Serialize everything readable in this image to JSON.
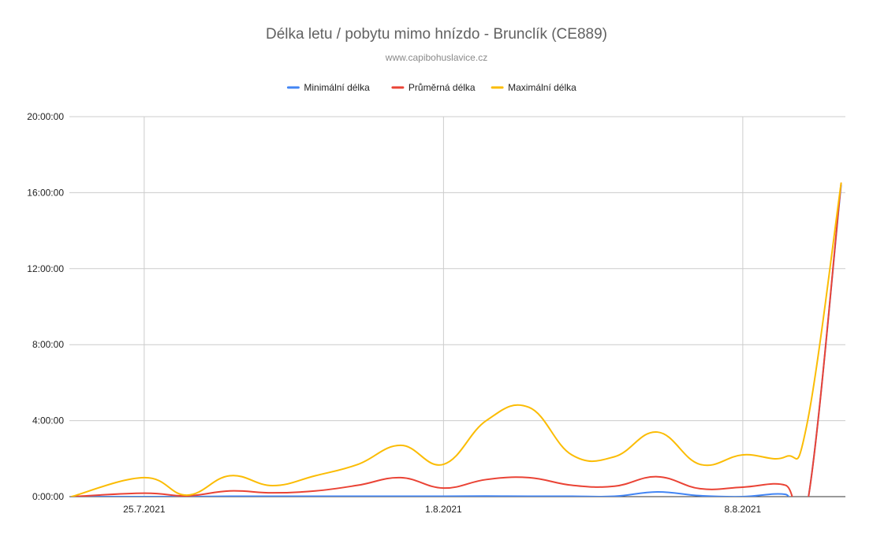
{
  "chart_data": {
    "type": "line",
    "title": "Délka letu / pobytu mimo hnízdo - Brunclík (CE889)",
    "subtitle": "www.capibohuslavice.cz",
    "xlabel": "",
    "ylabel": "",
    "x_range": [
      23.95,
      42.1
    ],
    "x_tick_labels": [
      "25.7.2021",
      "1.8.2021",
      "8.8.2021"
    ],
    "x_tick_values": [
      25.7,
      32.7,
      39.7
    ],
    "y_range_hours": [
      0,
      20
    ],
    "y_tick_values_hours": [
      0,
      4,
      8,
      12,
      16,
      20
    ],
    "y_tick_labels": [
      "0:00:00",
      "4:00:00",
      "8:00:00",
      "12:00:00",
      "16:00:00",
      "20:00:00"
    ],
    "grid": true,
    "legend_position": "top",
    "x": [
      24.0,
      25.7,
      26.7,
      27.7,
      28.7,
      29.7,
      30.7,
      31.7,
      32.7,
      33.7,
      34.7,
      35.7,
      36.7,
      37.7,
      38.7,
      39.7,
      40.7,
      41.2,
      42.0
    ],
    "series": [
      {
        "name": "Minimální délka",
        "color": "#4285f4",
        "values": [
          0,
          0,
          0,
          0.02,
          0.02,
          0.02,
          0.02,
          0.02,
          0.02,
          0.03,
          0.02,
          0.02,
          0.02,
          0.25,
          0.05,
          0,
          0.12,
          -0.5,
          16.4
        ]
      },
      {
        "name": "Průměrná délka",
        "color": "#ea4335",
        "values": [
          0,
          0.18,
          0.04,
          0.3,
          0.2,
          0.3,
          0.6,
          1.0,
          0.45,
          0.9,
          1.0,
          0.6,
          0.55,
          1.05,
          0.42,
          0.5,
          0.6,
          -0.5,
          16.5
        ]
      },
      {
        "name": "Maximální délka",
        "color": "#fbbc04",
        "values": [
          0,
          1.0,
          0.08,
          1.1,
          0.58,
          1.1,
          1.7,
          2.7,
          1.7,
          4.0,
          4.7,
          2.2,
          2.1,
          3.4,
          1.7,
          2.2,
          2.1,
          3.8,
          16.5
        ]
      }
    ]
  }
}
